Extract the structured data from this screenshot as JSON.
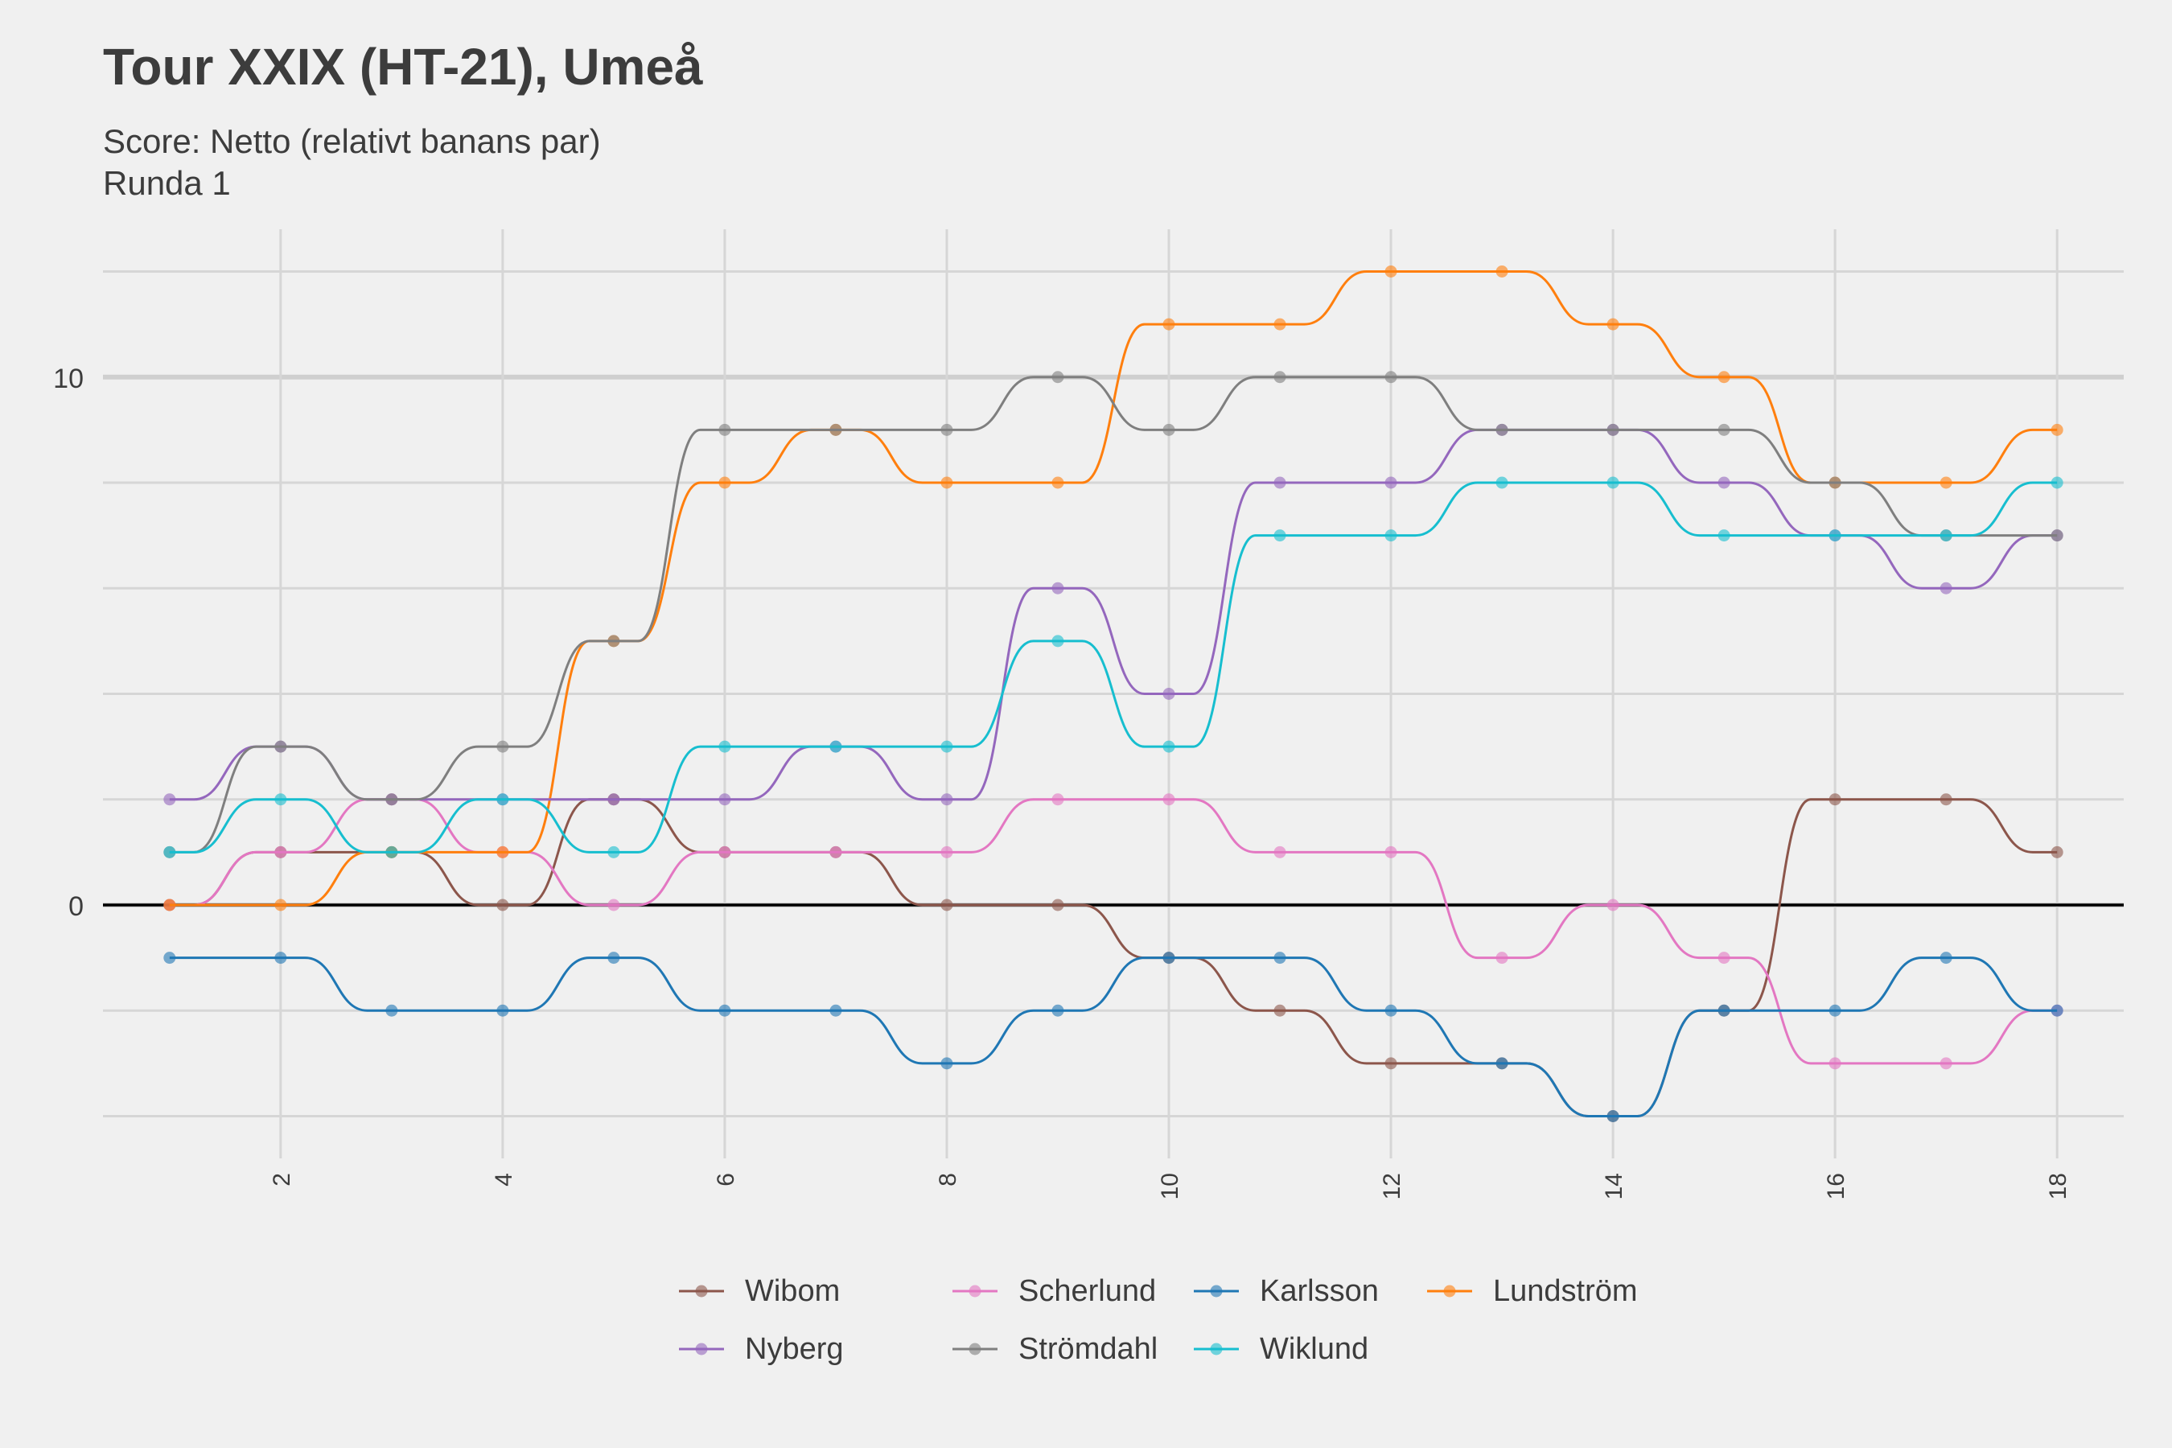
{
  "chart": {
    "title": "Tour XXIX (HT-21), Umeå",
    "subtitle_lines": [
      "Score: Netto (relativt banans par)",
      "Runda 1"
    ]
  },
  "chart_data": {
    "type": "line",
    "title": "Tour XXIX (HT-21), Umeå",
    "subtitle": "Score: Netto (relativt banans par)\nRunda 1",
    "xlabel": "",
    "ylabel": "",
    "x": [
      1,
      2,
      3,
      4,
      5,
      6,
      7,
      8,
      9,
      10,
      11,
      12,
      13,
      14,
      15,
      16,
      17,
      18
    ],
    "x_ticks": [
      2,
      4,
      6,
      8,
      10,
      12,
      14,
      16,
      18
    ],
    "y_ticks": [
      0,
      10
    ],
    "xlim": [
      0.4,
      18.6
    ],
    "ylim": [
      -4.8,
      12.8
    ],
    "grid": true,
    "reference_line_y": 0,
    "legend_position": "bottom",
    "series": [
      {
        "name": "Wibom",
        "color": "#8c564b",
        "values": [
          0,
          1,
          1,
          0,
          2,
          1,
          1,
          0,
          0,
          -1,
          -2,
          -3,
          -3,
          -4,
          -2,
          2,
          2,
          1
        ]
      },
      {
        "name": "Scherlund",
        "color": "#e377c2",
        "values": [
          0,
          1,
          2,
          1,
          0,
          1,
          1,
          1,
          2,
          2,
          1,
          1,
          -1,
          0,
          -1,
          -3,
          -3,
          -2
        ]
      },
      {
        "name": "Karlsson",
        "color": "#1f77b4",
        "values": [
          -1,
          -1,
          -2,
          -2,
          -1,
          -2,
          -2,
          -3,
          -2,
          -1,
          -1,
          -2,
          -3,
          -4,
          -2,
          -2,
          -1,
          -2
        ]
      },
      {
        "name": "Lundström",
        "color": "#ff7f0e",
        "values": [
          0,
          0,
          1,
          1,
          5,
          8,
          9,
          8,
          8,
          11,
          11,
          12,
          12,
          11,
          10,
          8,
          8,
          9
        ]
      },
      {
        "name": "Nyberg",
        "color": "#9467bd",
        "values": [
          2,
          3,
          2,
          2,
          2,
          2,
          3,
          2,
          6,
          4,
          8,
          8,
          9,
          9,
          8,
          7,
          6,
          7
        ]
      },
      {
        "name": "Strömdahl",
        "color": "#7f7f7f",
        "values": [
          1,
          3,
          2,
          3,
          5,
          9,
          9,
          9,
          10,
          9,
          10,
          10,
          9,
          9,
          9,
          8,
          7,
          7
        ]
      },
      {
        "name": "Wiklund",
        "color": "#17becf",
        "values": [
          1,
          2,
          1,
          2,
          1,
          3,
          3,
          3,
          5,
          3,
          7,
          7,
          8,
          8,
          7,
          7,
          7,
          8
        ]
      }
    ]
  }
}
